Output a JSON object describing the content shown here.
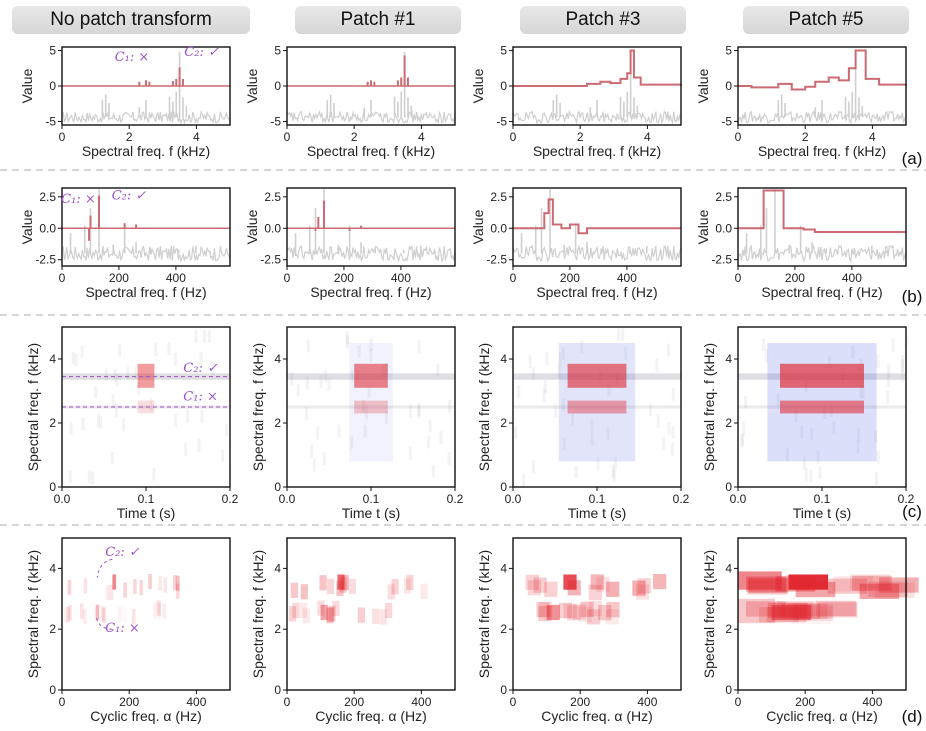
{
  "headers": [
    "No patch transform",
    "Patch #1",
    "Patch #3",
    "Patch #5"
  ],
  "row_labels": [
    "(a)",
    "(b)",
    "(c)",
    "(d)"
  ],
  "colors": {
    "signal": "#cc6b72",
    "reference": "#cfcfcf",
    "annotation": "#9b51c9",
    "positive": "#e0232b",
    "negative": "#4b5fe0"
  },
  "chart_data": [
    {
      "row": "a",
      "type": "line",
      "xlabel": "Spectral freq. f (kHz)",
      "ylabel": "Value",
      "xlim": [
        0,
        5
      ],
      "ylim": [
        -5.5,
        5.5
      ],
      "xticks": [
        "0",
        "2",
        "4"
      ],
      "yticks": [
        "5",
        "0",
        "-5"
      ],
      "reference_peaks": [
        [
          1.2,
          -4.2
        ],
        [
          1.5,
          -1.8
        ],
        [
          2.4,
          -3.8
        ],
        [
          3.2,
          -2.0
        ],
        [
          3.3,
          -3.3
        ],
        [
          3.4,
          -2.4
        ],
        [
          3.5,
          4.6
        ],
        [
          3.6,
          -2.9
        ]
      ],
      "annotations": [
        {
          "label": "C₁: ×",
          "x": 2.5
        },
        {
          "label": "C₂: ✓",
          "x": 3.5
        }
      ],
      "series": [
        {
          "name": "No patch transform",
          "peaks": [
            [
              2.3,
              0.6
            ],
            [
              2.5,
              0.8
            ],
            [
              2.6,
              0.6
            ],
            [
              3.3,
              0.7
            ],
            [
              3.4,
              1.0
            ],
            [
              3.5,
              2.6
            ],
            [
              3.6,
              1.0
            ]
          ]
        },
        {
          "name": "Patch #1",
          "peaks": [
            [
              2.4,
              0.6
            ],
            [
              2.5,
              0.8
            ],
            [
              2.6,
              0.6
            ],
            [
              3.3,
              0.8
            ],
            [
              3.4,
              1.2
            ],
            [
              3.5,
              4.3
            ],
            [
              3.6,
              1.2
            ]
          ]
        },
        {
          "name": "Patch #3",
          "steps": [
            [
              0,
              0
            ],
            [
              2.2,
              0.3
            ],
            [
              2.6,
              0.6
            ],
            [
              2.9,
              0.4
            ],
            [
              3.2,
              1.0
            ],
            [
              3.4,
              1.8
            ],
            [
              3.5,
              5.0
            ],
            [
              3.6,
              1.2
            ],
            [
              3.8,
              0.2
            ],
            [
              5,
              0
            ]
          ]
        },
        {
          "name": "Patch #5",
          "steps": [
            [
              0,
              0
            ],
            [
              0.4,
              -0.2
            ],
            [
              1.2,
              0.3
            ],
            [
              1.6,
              -0.5
            ],
            [
              2.0,
              -0.1
            ],
            [
              2.3,
              0.6
            ],
            [
              2.7,
              1.2
            ],
            [
              3.0,
              0.8
            ],
            [
              3.3,
              2.5
            ],
            [
              3.5,
              5.0
            ],
            [
              3.8,
              1.0
            ],
            [
              4.2,
              0.2
            ],
            [
              5,
              0
            ]
          ]
        }
      ]
    },
    {
      "row": "b",
      "type": "line",
      "xlabel": "Spectral freq. f (Hz)",
      "ylabel": "Value",
      "xlim": [
        0,
        590
      ],
      "ylim": [
        -3.0,
        3.2
      ],
      "xticks": [
        "0",
        "200",
        "400"
      ],
      "yticks": [
        "2.5",
        "0.0",
        "-2.5"
      ],
      "annotations": [
        {
          "label": "C₁: ×",
          "x": 100
        },
        {
          "label": "C₂: ✓",
          "x": 130
        }
      ],
      "series": [
        {
          "name": "No patch transform",
          "peaks": [
            [
              95,
              -1.0
            ],
            [
              100,
              1.0
            ],
            [
              130,
              2.6
            ],
            [
              220,
              0.4
            ],
            [
              260,
              0.3
            ]
          ]
        },
        {
          "name": "Patch #1",
          "peaks": [
            [
              100,
              -0.2
            ],
            [
              110,
              0.9
            ],
            [
              130,
              2.2
            ],
            [
              220,
              -0.2
            ],
            [
              260,
              0.2
            ]
          ]
        },
        {
          "name": "Patch #3",
          "steps": [
            [
              0,
              0
            ],
            [
              110,
              1.2
            ],
            [
              125,
              2.3
            ],
            [
              140,
              0.3
            ],
            [
              170,
              0.0
            ],
            [
              200,
              0.3
            ],
            [
              230,
              -0.4
            ],
            [
              260,
              0.0
            ],
            [
              590,
              0
            ]
          ]
        },
        {
          "name": "Patch #5",
          "steps": [
            [
              0,
              0
            ],
            [
              90,
              3.0
            ],
            [
              160,
              0.0
            ],
            [
              230,
              -0.1
            ],
            [
              270,
              -0.3
            ],
            [
              590,
              -0.3
            ]
          ]
        }
      ]
    },
    {
      "row": "c",
      "type": "heatmap",
      "xlabel": "Time t (s)",
      "ylabel": "Spectral freq. f (kHz)",
      "xlim": [
        0,
        0.2
      ],
      "ylim": [
        0,
        5
      ],
      "xticks": [
        "0.0",
        "0.1",
        "0.2"
      ],
      "yticks": [
        "4",
        "2",
        "0"
      ],
      "annotations": [
        {
          "label": "C₂: ✓",
          "f": 3.45
        },
        {
          "label": "C₁: ×",
          "f": 2.5
        }
      ]
    },
    {
      "row": "d",
      "type": "heatmap",
      "xlabel": "Cyclic freq. α (Hz)",
      "ylabel": "Spectral freq. f (kHz)",
      "xlim": [
        0,
        500
      ],
      "ylim": [
        0,
        5
      ],
      "xticks": [
        "0",
        "200",
        "400"
      ],
      "yticks": [
        "4",
        "2",
        "0"
      ],
      "annotations": [
        {
          "label": "C₂: ✓",
          "alpha": 150
        },
        {
          "label": "C₁: ×",
          "alpha": 100
        }
      ]
    }
  ]
}
